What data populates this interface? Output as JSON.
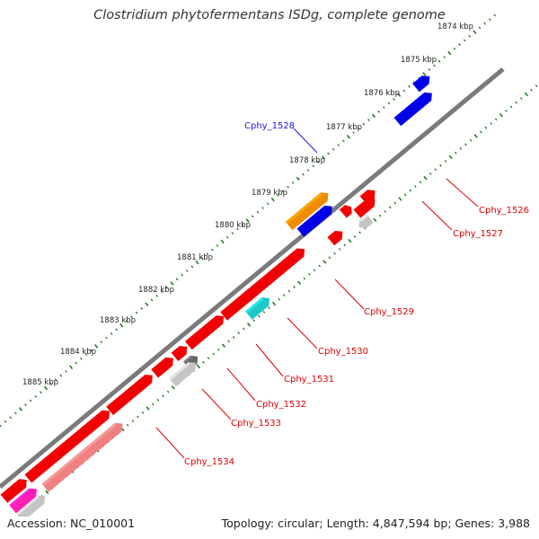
{
  "title": "Clostridium phytofermentans ISDg, complete genome",
  "footer": {
    "accession": "Accession: NC_010001",
    "summary": "Topology: circular; Length: 4,847,594 bp; Genes: 3,988"
  },
  "colors": {
    "backbone": "#7a7a7a",
    "tick": "#1d7a1d",
    "forward_label": "#1a1adc",
    "reverse_label": "#dd0000",
    "red": "#f00000",
    "blue": "#0000e6",
    "orange": "#f08c00",
    "cyan": "#1ec8c8",
    "grey": "#c4c4c4",
    "darkgrey": "#666666",
    "pink": "#f08080",
    "magenta": "#ff1eb4"
  },
  "ruler": [
    {
      "label": "1874 kbp",
      "kbp": 1874
    },
    {
      "label": "1875 kbp",
      "kbp": 1875
    },
    {
      "label": "1876 kbp",
      "kbp": 1876
    },
    {
      "label": "1877 kbp",
      "kbp": 1877
    },
    {
      "label": "1878 kbp",
      "kbp": 1878
    },
    {
      "label": "1879 kbp",
      "kbp": 1879
    },
    {
      "label": "1880 kbp",
      "kbp": 1880
    },
    {
      "label": "1881 kbp",
      "kbp": 1881
    },
    {
      "label": "1882 kbp",
      "kbp": 1882
    },
    {
      "label": "1883 kbp",
      "kbp": 1883
    },
    {
      "label": "1884 kbp",
      "kbp": 1884
    },
    {
      "label": "1885 kbp",
      "kbp": 1885
    }
  ],
  "gene_labels": [
    {
      "name": "Cphy_1528",
      "strand": "forward"
    },
    {
      "name": "Cphy_1526",
      "strand": "reverse"
    },
    {
      "name": "Cphy_1527",
      "strand": "reverse"
    },
    {
      "name": "Cphy_1529",
      "strand": "reverse"
    },
    {
      "name": "Cphy_1530",
      "strand": "reverse"
    },
    {
      "name": "Cphy_1531",
      "strand": "reverse"
    },
    {
      "name": "Cphy_1532",
      "strand": "reverse"
    },
    {
      "name": "Cphy_1533",
      "strand": "reverse"
    },
    {
      "name": "Cphy_1534",
      "strand": "reverse"
    }
  ]
}
